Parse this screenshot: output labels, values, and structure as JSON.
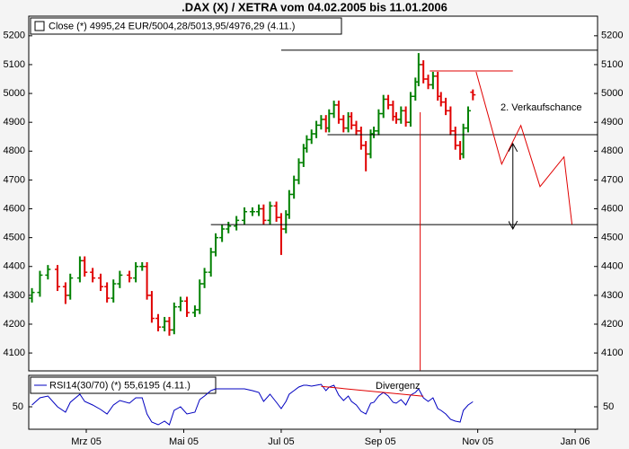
{
  "chart_data": {
    "type": "ohlc",
    "title": ".DAX (X) / XETRA vom 04.02.2005 bis 11.01.2006",
    "legend": "Close (*) 4995,24 EUR/5004,28/5013,95/4976,29 (4.11.)",
    "up_color": "#008000",
    "down_color": "#e00000",
    "xlim": [
      -8,
      348
    ],
    "xticks": [
      {
        "value": 28,
        "label": "Mrz 05"
      },
      {
        "value": 89,
        "label": "Mai 05"
      },
      {
        "value": 150,
        "label": "Jul 05"
      },
      {
        "value": 212,
        "label": "Sep 05"
      },
      {
        "value": 273,
        "label": "Nov 05"
      },
      {
        "value": 334,
        "label": "Jan 06"
      }
    ],
    "ylim": [
      4038,
      5268
    ],
    "yticks": [
      4100,
      4200,
      4300,
      4400,
      4500,
      4600,
      4700,
      4800,
      4900,
      5000,
      5100,
      5200
    ],
    "x": [
      -6,
      -1,
      4,
      10,
      15,
      18,
      24,
      27,
      32,
      37,
      41,
      45,
      49,
      55,
      59,
      63,
      66,
      69,
      73,
      77,
      80,
      83,
      87,
      91,
      96,
      99,
      102,
      106,
      109,
      113,
      117,
      122,
      127,
      132,
      136,
      139,
      143,
      147,
      150,
      153,
      155,
      158,
      161,
      164,
      166,
      169,
      172,
      175,
      178,
      180,
      183,
      186,
      189,
      192,
      194,
      197,
      200,
      203,
      206,
      208,
      211,
      214,
      217,
      220,
      222,
      225,
      228,
      231,
      234,
      236,
      239,
      242,
      245,
      248,
      250,
      253,
      256,
      259,
      262,
      264,
      267,
      270
    ],
    "open": [
      4290,
      4310,
      4370,
      4390,
      4330,
      4300,
      4360,
      4420,
      4380,
      4360,
      4330,
      4290,
      4340,
      4370,
      4360,
      4400,
      4400,
      4300,
      4220,
      4190,
      4210,
      4180,
      4260,
      4280,
      4240,
      4250,
      4340,
      4380,
      4450,
      4500,
      4530,
      4540,
      4560,
      4590,
      4590,
      4600,
      4560,
      4610,
      4570,
      4530,
      4580,
      4650,
      4700,
      4760,
      4810,
      4840,
      4860,
      4890,
      4910,
      4880,
      4930,
      4960,
      4910,
      4880,
      4920,
      4890,
      4870,
      4820,
      4790,
      4860,
      4870,
      4930,
      4980,
      4960,
      4920,
      4910,
      4940,
      4900,
      4990,
      5040,
      5100,
      5050,
      5030,
      5060,
      4990,
      4970,
      4940,
      4870,
      4820,
      4790,
      4880,
      5004.28
    ],
    "high": [
      4325,
      4385,
      4405,
      4405,
      4345,
      4375,
      4435,
      4435,
      4395,
      4375,
      4345,
      4355,
      4385,
      4385,
      4415,
      4415,
      4415,
      4315,
      4235,
      4225,
      4225,
      4275,
      4295,
      4295,
      4265,
      4355,
      4395,
      4465,
      4515,
      4545,
      4555,
      4575,
      4605,
      4605,
      4615,
      4615,
      4625,
      4625,
      4585,
      4595,
      4665,
      4715,
      4775,
      4825,
      4855,
      4875,
      4905,
      4925,
      4925,
      4945,
      4975,
      4975,
      4925,
      4935,
      4935,
      4905,
      4885,
      4835,
      4875,
      4885,
      4945,
      4995,
      4995,
      4975,
      4935,
      4955,
      4955,
      5005,
      5055,
      5140,
      5115,
      5065,
      5075,
      5075,
      5005,
      4985,
      4955,
      4885,
      4835,
      4895,
      4955,
      5013.95
    ],
    "low": [
      4275,
      4295,
      4355,
      4315,
      4270,
      4285,
      4345,
      4365,
      4345,
      4315,
      4275,
      4275,
      4325,
      4345,
      4345,
      4385,
      4285,
      4205,
      4175,
      4175,
      4160,
      4165,
      4245,
      4225,
      4225,
      4235,
      4325,
      4365,
      4435,
      4485,
      4515,
      4525,
      4545,
      4575,
      4575,
      4545,
      4545,
      4555,
      4440,
      4515,
      4565,
      4635,
      4685,
      4745,
      4795,
      4825,
      4845,
      4875,
      4865,
      4865,
      4915,
      4895,
      4865,
      4865,
      4875,
      4855,
      4805,
      4730,
      4775,
      4845,
      4855,
      4915,
      4945,
      4905,
      4895,
      4895,
      4885,
      4885,
      4975,
      5025,
      5035,
      5015,
      5015,
      4975,
      4955,
      4925,
      4855,
      4805,
      4770,
      4775,
      4865,
      4976.29
    ],
    "close": [
      4310,
      4370,
      4390,
      4330,
      4300,
      4360,
      4420,
      4380,
      4360,
      4330,
      4290,
      4340,
      4370,
      4360,
      4400,
      4400,
      4300,
      4220,
      4190,
      4210,
      4180,
      4260,
      4280,
      4240,
      4250,
      4340,
      4380,
      4450,
      4500,
      4530,
      4540,
      4560,
      4590,
      4590,
      4600,
      4560,
      4610,
      4570,
      4530,
      4580,
      4650,
      4700,
      4760,
      4810,
      4840,
      4860,
      4890,
      4910,
      4880,
      4930,
      4960,
      4910,
      4880,
      4920,
      4890,
      4870,
      4820,
      4790,
      4860,
      4870,
      4930,
      4980,
      4960,
      4920,
      4910,
      4940,
      4900,
      4990,
      5040,
      5100,
      5050,
      5030,
      5060,
      4990,
      4970,
      4940,
      4870,
      4820,
      4790,
      4880,
      4940,
      4995.24
    ],
    "rsi": {
      "legend": "RSI14(30/70) (*) 55,6195 (4.11.)",
      "color": "#0000c0",
      "ylim": [
        25,
        85
      ],
      "yticks": [
        50
      ],
      "values": [
        52,
        60,
        62,
        50,
        44,
        55,
        64,
        56,
        52,
        47,
        42,
        52,
        57,
        54,
        60,
        60,
        42,
        33,
        30,
        34,
        30,
        46,
        50,
        42,
        44,
        58,
        62,
        68,
        70,
        70,
        70,
        70,
        70,
        68,
        66,
        56,
        64,
        55,
        48,
        56,
        64,
        68,
        72,
        74,
        74,
        73,
        74,
        75,
        68,
        72,
        74,
        63,
        57,
        62,
        56,
        52,
        45,
        42,
        54,
        55,
        62,
        66,
        62,
        55,
        54,
        58,
        52,
        63,
        66,
        70,
        60,
        56,
        60,
        48,
        46,
        42,
        36,
        34,
        33,
        46,
        52,
        55.6195
      ]
    },
    "annotations": {
      "lines": [
        {
          "color": "#000000",
          "x": [
            150,
            348
          ],
          "y": [
            5150,
            5150
          ]
        },
        {
          "color": "#e00000",
          "x": [
            243,
            295
          ],
          "y": [
            5078,
            5078
          ]
        },
        {
          "color": "#000000",
          "x": [
            179,
            348
          ],
          "y": [
            4857,
            4857
          ]
        },
        {
          "color": "#000000",
          "x": [
            106,
            348
          ],
          "y": [
            4545,
            4545
          ]
        },
        {
          "color": "#e00000",
          "x": [
            272,
            288,
            300,
            312,
            327,
            332
          ],
          "y": [
            5075,
            4755,
            4889,
            4677,
            4780,
            4546
          ]
        },
        {
          "color": "#e00000",
          "x": [
            237,
            237
          ],
          "y": [
            4935,
            4040
          ]
        },
        {
          "color": "#000000",
          "x": [
            295,
            295
          ],
          "y": [
            4826,
            4530
          ],
          "arrow": true
        },
        {
          "color": "#e00000",
          "x": [
            175,
            239
          ],
          "y": [
            72.7,
            61.7
          ],
          "panel": "rsi"
        }
      ],
      "texts": [
        {
          "text": "2. Verkaufschance",
          "color": "#e00000"
        },
        {
          "text": "Divergenz",
          "color": "#e00000"
        }
      ]
    }
  }
}
